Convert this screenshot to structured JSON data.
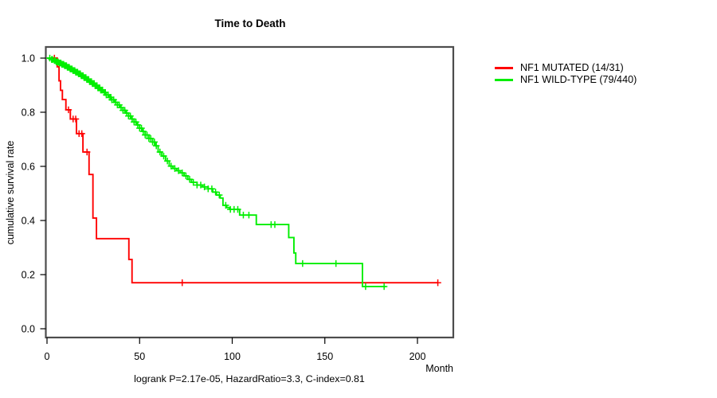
{
  "title": "Time to Death",
  "ylabel": "cumulative survival rate",
  "xlabel": "Month",
  "caption": "logrank P=2.17e-05, HazardRatio=3.3, C-index=0.81",
  "colors": {
    "mutated": "#ff0000",
    "wildtype": "#00ee00",
    "box": "#4d4d4d",
    "tick": "#000000"
  },
  "legend": [
    {
      "label": "NF1 MUTATED (14/31)",
      "color": "#ff0000"
    },
    {
      "label": "NF1 WILD-TYPE (79/440)",
      "color": "#00ee00"
    }
  ],
  "chart_data": {
    "type": "line",
    "subtype": "kaplan-meier-step",
    "title": "Time to Death",
    "xlabel": "Month",
    "ylabel": "cumulative survival rate",
    "xlim": [
      0,
      219
    ],
    "ylim": [
      0,
      1.04
    ],
    "x_ticks": [
      0,
      50,
      100,
      150,
      200
    ],
    "y_ticks": [
      0.0,
      0.2,
      0.4,
      0.6,
      0.8,
      1.0
    ],
    "x_tick_labels": [
      "0",
      "50",
      "100",
      "150",
      "200"
    ],
    "y_tick_labels": [
      "0.0",
      "0.2",
      "0.4",
      "0.6",
      "0.8",
      "1.0"
    ],
    "grid": false,
    "legend_position": "right-outside",
    "series": [
      {
        "name": "NF1 MUTATED (14/31)",
        "color": "#ff0000",
        "end_month": 211,
        "steps": [
          [
            0,
            1.0
          ],
          [
            5.5,
            0.968
          ],
          [
            6.5,
            0.916
          ],
          [
            7.3,
            0.881
          ],
          [
            8.3,
            0.847
          ],
          [
            10.2,
            0.809
          ],
          [
            12.6,
            0.775
          ],
          [
            15.9,
            0.721
          ],
          [
            19.4,
            0.653
          ],
          [
            22.7,
            0.57
          ],
          [
            24.8,
            0.409
          ],
          [
            26.7,
            0.333
          ],
          [
            44.2,
            0.256
          ],
          [
            45.9,
            0.17
          ]
        ],
        "censor_months": [
          4,
          11.6,
          14.1,
          15.5,
          17.3,
          18.8,
          21.6,
          73,
          211
        ]
      },
      {
        "name": "NF1 WILD-TYPE (79/440)",
        "color": "#00ee00",
        "end_month": 183,
        "steps": [
          [
            0,
            1.0
          ],
          [
            2,
            0.995
          ],
          [
            3.5,
            0.991
          ],
          [
            5,
            0.986
          ],
          [
            6.5,
            0.982
          ],
          [
            8,
            0.977
          ],
          [
            9.5,
            0.972
          ],
          [
            11,
            0.966
          ],
          [
            12.5,
            0.96
          ],
          [
            14,
            0.954
          ],
          [
            15.5,
            0.948
          ],
          [
            17,
            0.942
          ],
          [
            18.5,
            0.935
          ],
          [
            20,
            0.928
          ],
          [
            21.5,
            0.921
          ],
          [
            23,
            0.913
          ],
          [
            24.5,
            0.906
          ],
          [
            26,
            0.898
          ],
          [
            27.5,
            0.89
          ],
          [
            29,
            0.882
          ],
          [
            30.5,
            0.873
          ],
          [
            32,
            0.864
          ],
          [
            33.5,
            0.855
          ],
          [
            35,
            0.846
          ],
          [
            36.5,
            0.837
          ],
          [
            38,
            0.827
          ],
          [
            39.5,
            0.817
          ],
          [
            41,
            0.807
          ],
          [
            42.5,
            0.797
          ],
          [
            44,
            0.786
          ],
          [
            45.5,
            0.775
          ],
          [
            47,
            0.764
          ],
          [
            48.5,
            0.753
          ],
          [
            50,
            0.741
          ],
          [
            51.5,
            0.729
          ],
          [
            53,
            0.716
          ],
          [
            55,
            0.703
          ],
          [
            57,
            0.69
          ],
          [
            58.5,
            0.676
          ],
          [
            60,
            0.653
          ],
          [
            62,
            0.638
          ],
          [
            64,
            0.62
          ],
          [
            66,
            0.601
          ],
          [
            68,
            0.592
          ],
          [
            70,
            0.584
          ],
          [
            72,
            0.576
          ],
          [
            74,
            0.565
          ],
          [
            76,
            0.552
          ],
          [
            78,
            0.541
          ],
          [
            81,
            0.531
          ],
          [
            84,
            0.524
          ],
          [
            87,
            0.517
          ],
          [
            89.5,
            0.505
          ],
          [
            91.5,
            0.494
          ],
          [
            93.5,
            0.483
          ],
          [
            95,
            0.456
          ],
          [
            97,
            0.448
          ],
          [
            98.5,
            0.441
          ],
          [
            104,
            0.42
          ],
          [
            113,
            0.385
          ],
          [
            130.5,
            0.337
          ],
          [
            133.3,
            0.28
          ],
          [
            134.3,
            0.241
          ],
          [
            170.3,
            0.156
          ]
        ],
        "censor_months": [
          1.5,
          2.5,
          3,
          4,
          4.5,
          5,
          5.5,
          6,
          6.5,
          7,
          7.5,
          8,
          8.5,
          9,
          9.5,
          10,
          10.5,
          11,
          11.5,
          12,
          12.5,
          13,
          13.5,
          14,
          14.5,
          15,
          15.5,
          16,
          16.5,
          17,
          17.5,
          18,
          18.5,
          19,
          19.5,
          20,
          20.5,
          21,
          21.5,
          22,
          22.5,
          23,
          23.5,
          24,
          24.5,
          25,
          25.5,
          26,
          26.5,
          27,
          27.5,
          28,
          28.5,
          29,
          29.5,
          30,
          31,
          31.5,
          32,
          33,
          34,
          34.5,
          35,
          36,
          37,
          38,
          39,
          40,
          41,
          42,
          43,
          44,
          45,
          46,
          47,
          48,
          49,
          50,
          51,
          52,
          53,
          54,
          55,
          56,
          57,
          58,
          59,
          61,
          63,
          65,
          67,
          69,
          71,
          73,
          75,
          77,
          79,
          81,
          83,
          85,
          87,
          89,
          91,
          93,
          96.5,
          99,
          101,
          103,
          106,
          109,
          121,
          123,
          138,
          156,
          172,
          182
        ]
      }
    ]
  },
  "geometry_note": "x(month)=59+2.325*m ; y(survival)=413-340*v ; plot box 57.5,59 to 569,424"
}
